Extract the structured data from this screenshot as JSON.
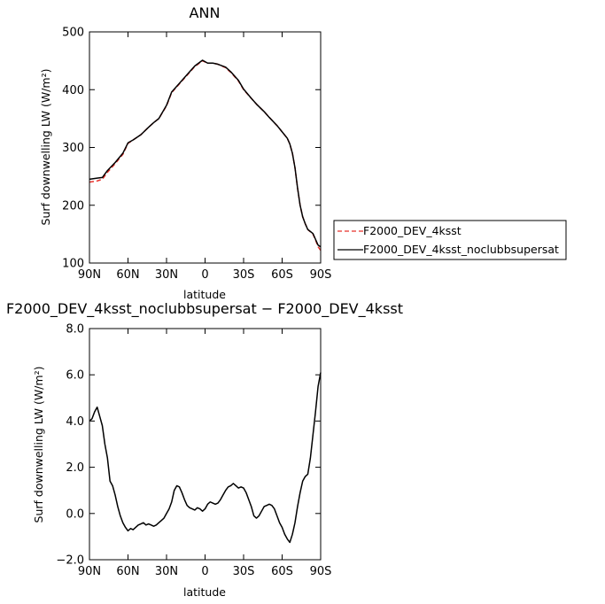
{
  "chart_data": [
    {
      "type": "line",
      "title": "ANN",
      "xlabel": "latitude",
      "ylabel": "Surf downwelling LW (W/m²)",
      "xlim": [
        90,
        -90
      ],
      "ylim": [
        100,
        500
      ],
      "xticks": [
        90,
        60,
        30,
        0,
        -30,
        -60,
        -90
      ],
      "xticklabels": [
        "90N",
        "60N",
        "30N",
        "0",
        "30S",
        "60S",
        "90S"
      ],
      "yticks": [
        100,
        200,
        300,
        400,
        500
      ],
      "yticklabels": [
        "100",
        "200",
        "300",
        "400",
        "500"
      ],
      "legend": "right",
      "series": [
        {
          "name": "F2000_DEV_4ksst",
          "color": "#e8302a",
          "dash": "dashed",
          "points": [
            [
              90,
              240
            ],
            [
              84,
              242
            ],
            [
              80,
              245
            ],
            [
              76,
              257
            ],
            [
              70,
              272
            ],
            [
              64,
              288
            ],
            [
              60,
              307
            ],
            [
              56,
              313
            ],
            [
              50,
              322
            ],
            [
              44,
              335
            ],
            [
              40,
              343
            ],
            [
              36,
              350
            ],
            [
              30,
              372
            ],
            [
              26,
              395
            ],
            [
              20,
              410
            ],
            [
              14,
              425
            ],
            [
              8,
              440
            ],
            [
              2,
              450
            ],
            [
              -2,
              446
            ],
            [
              -6,
              446
            ],
            [
              -10,
              444
            ],
            [
              -16,
              438
            ],
            [
              -20,
              430
            ],
            [
              -26,
              415
            ],
            [
              -30,
              400
            ],
            [
              -36,
              385
            ],
            [
              -40,
              375
            ],
            [
              -46,
              362
            ],
            [
              -50,
              352
            ],
            [
              -56,
              338
            ],
            [
              -60,
              327
            ],
            [
              -64,
              316
            ],
            [
              -66,
              306
            ],
            [
              -68,
              290
            ],
            [
              -70,
              265
            ],
            [
              -72,
              230
            ],
            [
              -74,
              200
            ],
            [
              -76,
              180
            ],
            [
              -78,
              168
            ],
            [
              -80,
              158
            ],
            [
              -84,
              150
            ],
            [
              -86,
              140
            ],
            [
              -88,
              128
            ],
            [
              -90,
              122
            ]
          ]
        },
        {
          "name": "F2000_DEV_4ksst_noclubbsupersat",
          "color": "#000000",
          "dash": "solid",
          "points": [
            [
              90,
              245
            ],
            [
              84,
              247
            ],
            [
              80,
              248
            ],
            [
              76,
              260
            ],
            [
              70,
              274
            ],
            [
              64,
              290
            ],
            [
              60,
              308
            ],
            [
              56,
              313
            ],
            [
              50,
              322
            ],
            [
              44,
              335
            ],
            [
              40,
              343
            ],
            [
              36,
              350
            ],
            [
              30,
              373
            ],
            [
              26,
              396
            ],
            [
              20,
              411
            ],
            [
              14,
              426
            ],
            [
              8,
              441
            ],
            [
              2,
              451
            ],
            [
              -2,
              446
            ],
            [
              -6,
              446
            ],
            [
              -10,
              444
            ],
            [
              -16,
              439
            ],
            [
              -20,
              431
            ],
            [
              -26,
              416
            ],
            [
              -30,
              401
            ],
            [
              -36,
              385
            ],
            [
              -40,
              375
            ],
            [
              -46,
              362
            ],
            [
              -50,
              352
            ],
            [
              -56,
              338
            ],
            [
              -60,
              327
            ],
            [
              -64,
              316
            ],
            [
              -66,
              306
            ],
            [
              -68,
              290
            ],
            [
              -70,
              265
            ],
            [
              -72,
              230
            ],
            [
              -74,
              200
            ],
            [
              -76,
              180
            ],
            [
              -78,
              168
            ],
            [
              -80,
              158
            ],
            [
              -84,
              151
            ],
            [
              -86,
              141
            ],
            [
              -88,
              131
            ],
            [
              -90,
              128
            ]
          ]
        }
      ]
    },
    {
      "type": "line",
      "title": "F2000_DEV_4ksst_noclubbsupersat − F2000_DEV_4ksst",
      "xlabel": "latitude",
      "ylabel": "Surf downwelling LW (W/m²)",
      "xlim": [
        90,
        -90
      ],
      "ylim": [
        -2,
        8
      ],
      "xticks": [
        90,
        60,
        30,
        0,
        -30,
        -60,
        -90
      ],
      "xticklabels": [
        "90N",
        "60N",
        "30N",
        "0",
        "30S",
        "60S",
        "90S"
      ],
      "yticks": [
        -2,
        0,
        2,
        4,
        6,
        8
      ],
      "yticklabels": [
        "−2.0",
        "0.0",
        "2.0",
        "4.0",
        "6.0",
        "8.0"
      ],
      "series": [
        {
          "color": "#000000",
          "dash": "solid",
          "points": [
            [
              90,
              4.0
            ],
            [
              88,
              4.1
            ],
            [
              86,
              4.4
            ],
            [
              84,
              4.6
            ],
            [
              82,
              4.2
            ],
            [
              80,
              3.8
            ],
            [
              78,
              3.0
            ],
            [
              76,
              2.4
            ],
            [
              74,
              1.4
            ],
            [
              72,
              1.2
            ],
            [
              70,
              0.8
            ],
            [
              68,
              0.3
            ],
            [
              66,
              -0.1
            ],
            [
              64,
              -0.4
            ],
            [
              62,
              -0.6
            ],
            [
              60,
              -0.75
            ],
            [
              58,
              -0.65
            ],
            [
              56,
              -0.7
            ],
            [
              54,
              -0.6
            ],
            [
              52,
              -0.5
            ],
            [
              50,
              -0.45
            ],
            [
              48,
              -0.4
            ],
            [
              46,
              -0.5
            ],
            [
              44,
              -0.45
            ],
            [
              42,
              -0.5
            ],
            [
              40,
              -0.55
            ],
            [
              38,
              -0.5
            ],
            [
              36,
              -0.4
            ],
            [
              34,
              -0.3
            ],
            [
              32,
              -0.2
            ],
            [
              30,
              0.0
            ],
            [
              28,
              0.2
            ],
            [
              26,
              0.5
            ],
            [
              24,
              1.0
            ],
            [
              22,
              1.2
            ],
            [
              20,
              1.15
            ],
            [
              18,
              0.9
            ],
            [
              16,
              0.6
            ],
            [
              14,
              0.35
            ],
            [
              12,
              0.25
            ],
            [
              10,
              0.2
            ],
            [
              8,
              0.15
            ],
            [
              6,
              0.25
            ],
            [
              4,
              0.2
            ],
            [
              2,
              0.1
            ],
            [
              0,
              0.2
            ],
            [
              -2,
              0.4
            ],
            [
              -4,
              0.5
            ],
            [
              -6,
              0.45
            ],
            [
              -8,
              0.4
            ],
            [
              -10,
              0.45
            ],
            [
              -12,
              0.6
            ],
            [
              -14,
              0.8
            ],
            [
              -16,
              1.0
            ],
            [
              -18,
              1.15
            ],
            [
              -20,
              1.2
            ],
            [
              -22,
              1.3
            ],
            [
              -24,
              1.2
            ],
            [
              -26,
              1.1
            ],
            [
              -28,
              1.15
            ],
            [
              -30,
              1.1
            ],
            [
              -32,
              0.9
            ],
            [
              -34,
              0.6
            ],
            [
              -36,
              0.3
            ],
            [
              -38,
              -0.1
            ],
            [
              -40,
              -0.2
            ],
            [
              -42,
              -0.1
            ],
            [
              -44,
              0.1
            ],
            [
              -46,
              0.3
            ],
            [
              -48,
              0.35
            ],
            [
              -50,
              0.4
            ],
            [
              -52,
              0.35
            ],
            [
              -54,
              0.2
            ],
            [
              -56,
              -0.1
            ],
            [
              -58,
              -0.4
            ],
            [
              -60,
              -0.6
            ],
            [
              -62,
              -0.9
            ],
            [
              -64,
              -1.1
            ],
            [
              -66,
              -1.25
            ],
            [
              -68,
              -0.9
            ],
            [
              -70,
              -0.4
            ],
            [
              -72,
              0.3
            ],
            [
              -74,
              0.9
            ],
            [
              -76,
              1.4
            ],
            [
              -78,
              1.6
            ],
            [
              -80,
              1.7
            ],
            [
              -82,
              2.4
            ],
            [
              -84,
              3.4
            ],
            [
              -86,
              4.4
            ],
            [
              -88,
              5.5
            ],
            [
              -90,
              6.1
            ]
          ]
        }
      ]
    }
  ]
}
